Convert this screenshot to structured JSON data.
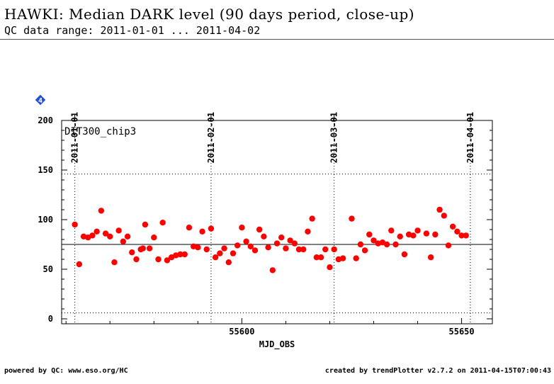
{
  "header": {
    "title": "HAWKI: Median DARK level (90 days period, close-up)",
    "subtitle": "QC data range: 2011-01-01 ... 2011-04-02"
  },
  "footer": {
    "left": "powered by QC: www.eso.org/HC",
    "right": "created by trendPlotter v2.7.2 on 2011-04-15T07:00:43"
  },
  "badge": {
    "label": "4",
    "color": "#1f4fd8",
    "icon": "diamond-icon"
  },
  "chart_data": {
    "type": "scatter",
    "panel_label": "DIT300_chip3",
    "xlabel": "MJD_OBS",
    "ylabel": "",
    "xlim": [
      55559,
      55657
    ],
    "ylim": [
      -5,
      200
    ],
    "x_ticks": [
      55600,
      55650
    ],
    "y_ticks": [
      0,
      50,
      100,
      150,
      200
    ],
    "date_markers": [
      {
        "label": "2011-01-01",
        "mjd": 55562
      },
      {
        "label": "2011-02-01",
        "mjd": 55593
      },
      {
        "label": "2011-03-01",
        "mjd": 55621
      },
      {
        "label": "2011-04-01",
        "mjd": 55652
      }
    ],
    "reference_lines": {
      "median": 75,
      "upper": 146,
      "lower": 6
    },
    "point_color": "#ff0000",
    "series": [
      {
        "points": [
          [
            55562.0,
            95
          ],
          [
            55563.0,
            55
          ],
          [
            55564.0,
            83
          ],
          [
            55565.0,
            82
          ],
          [
            55566.0,
            84
          ],
          [
            55567.0,
            88
          ],
          [
            55568.0,
            109
          ],
          [
            55569.0,
            86
          ],
          [
            55570.0,
            83
          ],
          [
            55571.0,
            57
          ],
          [
            55572.0,
            89
          ],
          [
            55573.0,
            78
          ],
          [
            55574.0,
            83
          ],
          [
            55575.0,
            67
          ],
          [
            55576.0,
            60
          ],
          [
            55577.0,
            70
          ],
          [
            55577.5,
            71
          ],
          [
            55578.0,
            95
          ],
          [
            55579.0,
            71
          ],
          [
            55580.0,
            82
          ],
          [
            55581.0,
            60
          ],
          [
            55582.0,
            97
          ],
          [
            55583.0,
            59
          ],
          [
            55584.0,
            62
          ],
          [
            55585.0,
            64
          ],
          [
            55586.0,
            65
          ],
          [
            55587.0,
            65
          ],
          [
            55588.0,
            92
          ],
          [
            55589.0,
            73
          ],
          [
            55590.0,
            72
          ],
          [
            55591.0,
            88
          ],
          [
            55592.0,
            70
          ],
          [
            55593.0,
            91
          ],
          [
            55594.0,
            62
          ],
          [
            55595.0,
            66
          ],
          [
            55596.0,
            71
          ],
          [
            55597.0,
            57
          ],
          [
            55598.0,
            66
          ],
          [
            55599.0,
            74
          ],
          [
            55600.0,
            92
          ],
          [
            55601.0,
            78
          ],
          [
            55602.0,
            73
          ],
          [
            55603.0,
            69
          ],
          [
            55604.0,
            90
          ],
          [
            55605.0,
            83
          ],
          [
            55606.0,
            72
          ],
          [
            55607.0,
            49
          ],
          [
            55608.0,
            76
          ],
          [
            55609.0,
            82
          ],
          [
            55610.0,
            71
          ],
          [
            55611.0,
            79
          ],
          [
            55612.0,
            76
          ],
          [
            55613.0,
            70
          ],
          [
            55614.0,
            70
          ],
          [
            55615.0,
            88
          ],
          [
            55616.0,
            101
          ],
          [
            55617.0,
            62
          ],
          [
            55618.0,
            62
          ],
          [
            55619.0,
            70
          ],
          [
            55620.0,
            52
          ],
          [
            55621.0,
            70
          ],
          [
            55622.0,
            60
          ],
          [
            55623.0,
            61
          ],
          [
            55625.0,
            101
          ],
          [
            55626.0,
            61
          ],
          [
            55627.0,
            75
          ],
          [
            55628.0,
            69
          ],
          [
            55629.0,
            85
          ],
          [
            55630.0,
            79
          ],
          [
            55631.0,
            76
          ],
          [
            55632.0,
            77
          ],
          [
            55633.0,
            75
          ],
          [
            55634.0,
            89
          ],
          [
            55635.0,
            75
          ],
          [
            55636.0,
            83
          ],
          [
            55637.0,
            65
          ],
          [
            55638.0,
            85
          ],
          [
            55639.0,
            84
          ],
          [
            55640.0,
            89
          ],
          [
            55642.0,
            86
          ],
          [
            55643.0,
            62
          ],
          [
            55644.0,
            85
          ],
          [
            55645.0,
            110
          ],
          [
            55646.0,
            104
          ],
          [
            55647.0,
            74
          ],
          [
            55648.0,
            93
          ],
          [
            55649.0,
            88
          ],
          [
            55650.0,
            84
          ],
          [
            55651.0,
            84
          ]
        ]
      }
    ]
  }
}
